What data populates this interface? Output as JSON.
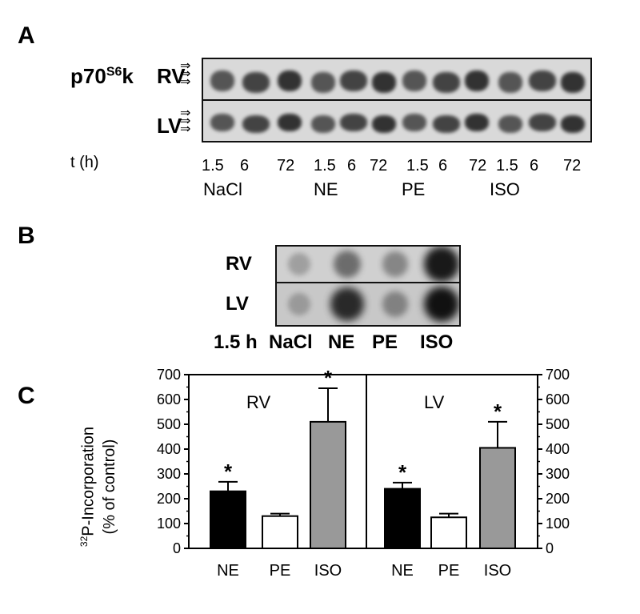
{
  "panelA": {
    "letter": "A",
    "protein_main": "p70",
    "protein_sup": "S6",
    "protein_tail": "k",
    "row_rv": "RV",
    "row_lv": "LV",
    "arrows": "⇒",
    "time_label": "t (h)",
    "times": [
      "1.5",
      "6",
      "72",
      "1.5",
      "6",
      "72",
      "1.5",
      "6",
      "72",
      "1.5",
      "6",
      "72"
    ],
    "groups": [
      "NaCl",
      "NE",
      "PE",
      "ISO"
    ]
  },
  "panelB": {
    "letter": "B",
    "row_rv": "RV",
    "row_lv": "LV",
    "time_label": "1.5 h",
    "lanes": [
      "NaCl",
      "NE",
      "PE",
      "ISO"
    ],
    "rv_intensity": [
      0.15,
      0.45,
      0.3,
      0.95
    ],
    "lv_intensity": [
      0.15,
      0.85,
      0.3,
      1.0
    ]
  },
  "panelC": {
    "letter": "C",
    "ylabel_sup": "32",
    "ylabel_line1": "P-Incorporation",
    "ylabel_line2": "(% of control)",
    "star": "*",
    "chart_data": [
      {
        "type": "bar",
        "title": "RV",
        "categories": [
          "NE",
          "PE",
          "ISO"
        ],
        "values": [
          230,
          130,
          510
        ],
        "errors": [
          38,
          10,
          135
        ],
        "significant": [
          true,
          false,
          true
        ],
        "colors": [
          "#000000",
          "#ffffff",
          "#999999"
        ],
        "ylim": [
          0,
          700
        ],
        "yticks": [
          0,
          100,
          200,
          300,
          400,
          500,
          600,
          700
        ]
      },
      {
        "type": "bar",
        "title": "LV",
        "categories": [
          "NE",
          "PE",
          "ISO"
        ],
        "values": [
          240,
          125,
          405
        ],
        "errors": [
          25,
          15,
          105
        ],
        "significant": [
          true,
          false,
          true
        ],
        "colors": [
          "#000000",
          "#ffffff",
          "#999999"
        ],
        "ylim": [
          0,
          700
        ],
        "yticks": [
          0,
          100,
          200,
          300,
          400,
          500,
          600,
          700
        ]
      }
    ]
  }
}
